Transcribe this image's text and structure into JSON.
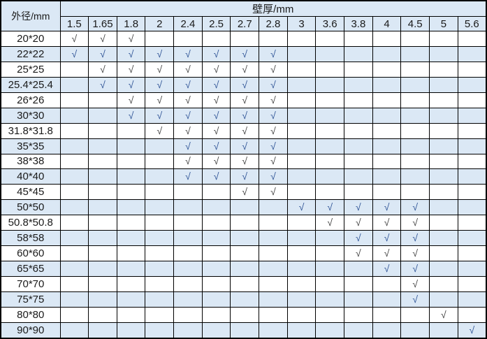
{
  "chart_data": {
    "type": "table",
    "corner_header": "外径/mm",
    "group_header": "壁厚/mm",
    "columns": [
      "1.5",
      "1.65",
      "1.8",
      "2",
      "2.4",
      "2.5",
      "2.7",
      "2.8",
      "3",
      "3.6",
      "3.8",
      "4",
      "4.5",
      "5",
      "5.6"
    ],
    "check_symbol": "√",
    "rows": [
      {
        "size": "20*20",
        "checks": [
          "1.5",
          "1.65",
          "1.8"
        ]
      },
      {
        "size": "22*22",
        "checks": [
          "1.5",
          "1.65",
          "1.8",
          "2",
          "2.4",
          "2.5",
          "2.7",
          "2.8"
        ]
      },
      {
        "size": "25*25",
        "checks": [
          "1.65",
          "1.8",
          "2",
          "2.4",
          "2.5",
          "2.7",
          "2.8"
        ]
      },
      {
        "size": "25.4*25.4",
        "checks": [
          "1.65",
          "1.8",
          "2",
          "2.4",
          "2.5",
          "2.7",
          "2.8"
        ]
      },
      {
        "size": "26*26",
        "checks": [
          "1.8",
          "2",
          "2.4",
          "2.5",
          "2.7",
          "2.8"
        ]
      },
      {
        "size": "30*30",
        "checks": [
          "1.8",
          "2",
          "2.4",
          "2.5",
          "2.7",
          "2.8"
        ]
      },
      {
        "size": "31.8*31.8",
        "checks": [
          "2",
          "2.4",
          "2.5",
          "2.7",
          "2.8"
        ]
      },
      {
        "size": "35*35",
        "checks": [
          "2.4",
          "2.5",
          "2.7",
          "2.8"
        ]
      },
      {
        "size": "38*38",
        "checks": [
          "2.4",
          "2.5",
          "2.7",
          "2.8"
        ]
      },
      {
        "size": "40*40",
        "checks": [
          "2.4",
          "2.5",
          "2.7",
          "2.8"
        ]
      },
      {
        "size": "45*45",
        "checks": [
          "2.7",
          "2.8"
        ]
      },
      {
        "size": "50*50",
        "checks": [
          "3",
          "3.6",
          "3.8",
          "4",
          "4.5"
        ]
      },
      {
        "size": "50.8*50.8",
        "checks": [
          "3.6",
          "3.8",
          "4",
          "4.5"
        ]
      },
      {
        "size": "58*58",
        "checks": [
          "3.8",
          "4",
          "4.5"
        ]
      },
      {
        "size": "60*60",
        "checks": [
          "3.8",
          "4",
          "4.5"
        ]
      },
      {
        "size": "65*65",
        "checks": [
          "4",
          "4.5"
        ]
      },
      {
        "size": "70*70",
        "checks": [
          "4.5"
        ]
      },
      {
        "size": "75*75",
        "checks": [
          "4.5"
        ]
      },
      {
        "size": "80*80",
        "checks": [
          "5"
        ]
      },
      {
        "size": "90*90",
        "checks": [
          "5.6"
        ]
      }
    ]
  },
  "colors": {
    "band_fill": "#dbe8f5",
    "header_fill": "#dbe8f5",
    "border": "#000000",
    "text": "#1a1a1a",
    "check_plain": "#404040",
    "check_band": "#2f5496"
  }
}
